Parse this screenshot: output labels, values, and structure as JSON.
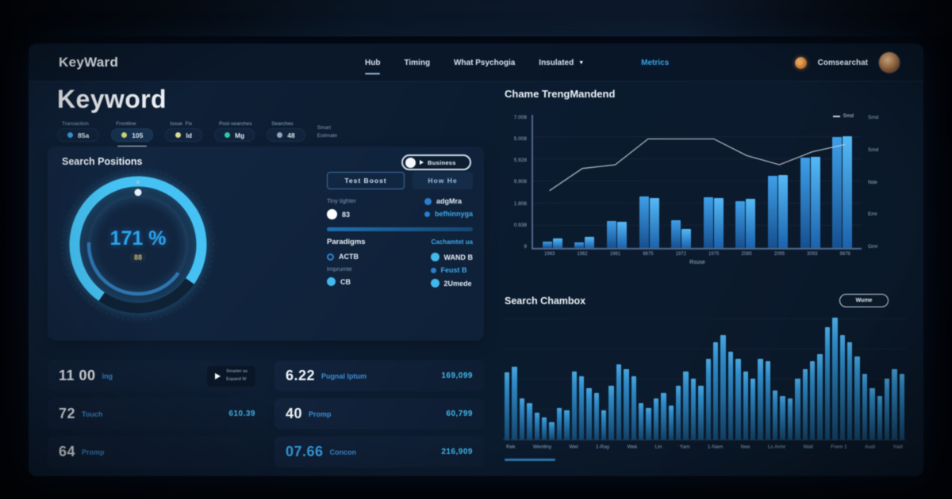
{
  "colors": {
    "accent": "#36a6ea",
    "cyan": "#41b9ee",
    "gauge": "#45c2f3",
    "orange_badge": "#d07a2e"
  },
  "brand": {
    "logo": "KeyWard"
  },
  "topnav": {
    "items": [
      "Hub",
      "Timing",
      "What Psychogia",
      "Insulated"
    ],
    "link": "Metrics",
    "account": "Comsearchat"
  },
  "header": {
    "title": "Keyword"
  },
  "filters": {
    "chips": [
      {
        "label": "Transaction",
        "value": "85a",
        "dot": "#3aa3e8"
      },
      {
        "label": "Frontline",
        "value": "105",
        "dot": "#d3d87b"
      },
      {
        "label": "Issue  Fix",
        "value": "Id",
        "dot": "#d9dc96"
      },
      {
        "label": "Post-searches",
        "value": "Mg",
        "dot": "#2fc9a5"
      },
      {
        "label": "Searches",
        "value": "48",
        "dot": "#93a7bb"
      }
    ],
    "note_line1": "Smart",
    "note_line2": "Estimate"
  },
  "positions_panel": {
    "title": "Search Positions",
    "toggle_label": "Business",
    "gauge": {
      "value": "171 %",
      "badge": "88"
    },
    "buttons": {
      "primary": "Test  Boost",
      "secondary": "How  He"
    },
    "left_caption": "Tiny tighter",
    "left_value": "83",
    "right_item1": "adgMra",
    "right_item2": "befhinnyga",
    "section_title": "Paradigms",
    "section_link": "Cachamtet ua",
    "row_actb": "ACTB",
    "row_caption": "Imprumte",
    "row_cb": "CB",
    "row_wand": "WAND B",
    "row_feust": "Feust B",
    "row_umede": "2Umede"
  },
  "stat_cards": {
    "col1": [
      {
        "value": "11 00",
        "label": "ing",
        "action_line1": "Smarter as",
        "action_line2": "Expand W"
      },
      {
        "value": "72",
        "label": "Touch",
        "amount": "610.39"
      },
      {
        "value": "64",
        "label": "Promp",
        "amount": ""
      }
    ],
    "col2": [
      {
        "value": "6.22",
        "label": "Pugnal Iptum",
        "amount": "169,099"
      },
      {
        "value": "40",
        "label": "Promp",
        "amount": "60,799"
      },
      {
        "value": "07.66",
        "label": "Concon",
        "amount": "216,909"
      }
    ]
  },
  "trend_chart": {
    "type": "bar+line",
    "title": "Chame TrengMandend",
    "legend": "Smd",
    "xlabel": "Rsuse",
    "y_max": 7.2,
    "y_labels": [
      "7.008",
      "5.008",
      "5.928",
      "9.908",
      "1.808",
      "0.938",
      "9"
    ],
    "y2_labels": [
      "Smd",
      "Smd",
      "Nde",
      "Emr",
      "Gmr"
    ],
    "categories": [
      "1963",
      "1962",
      "1981",
      "8875",
      "1972",
      "1975",
      "2085",
      "2095",
      "3093",
      "9878"
    ],
    "series_a": [
      0.35,
      0.3,
      1.45,
      2.8,
      1.5,
      2.75,
      2.55,
      3.9,
      4.9,
      6.0
    ],
    "series_b": [
      0.5,
      0.6,
      1.4,
      2.7,
      1.05,
      2.7,
      2.65,
      3.95,
      4.95,
      6.05
    ],
    "line": [
      3.1,
      4.3,
      4.5,
      5.9,
      5.9,
      5.9,
      5.0,
      4.5,
      5.2,
      5.6
    ]
  },
  "search_chart": {
    "type": "bar",
    "title": "Search Chambox",
    "button": "Wume",
    "x_labels": [
      "Rek",
      "Wentlny",
      "Wel",
      "1-Ray",
      "Wek",
      "Lin",
      "Yam",
      "1-Nam",
      "Nee",
      "Ls Armr",
      "Wall",
      "Frem 1",
      "Audi",
      "Yald"
    ],
    "values": [
      55,
      60,
      34,
      30,
      22,
      18,
      14,
      26,
      24,
      56,
      52,
      42,
      38,
      24,
      44,
      62,
      58,
      52,
      30,
      26,
      34,
      38,
      28,
      44,
      56,
      50,
      44,
      66,
      80,
      86,
      72,
      66,
      56,
      50,
      66,
      64,
      40,
      36,
      34,
      50,
      58,
      64,
      70,
      92,
      100,
      86,
      80,
      68,
      54,
      42,
      36,
      50,
      58,
      54
    ]
  }
}
